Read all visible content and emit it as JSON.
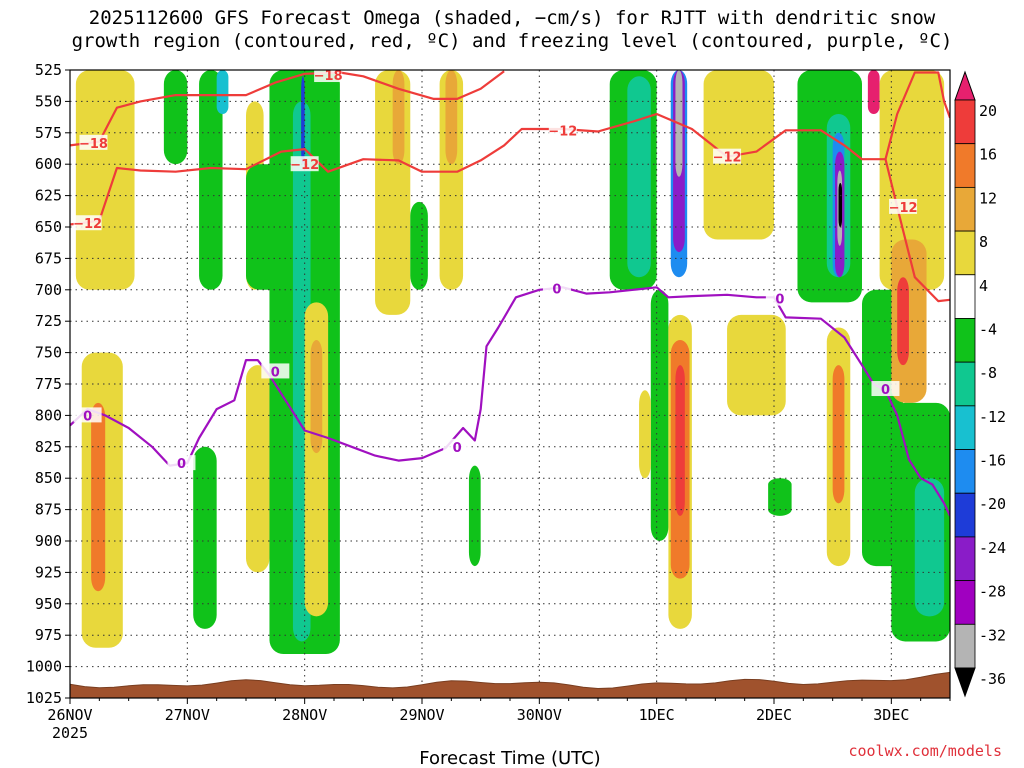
{
  "chart_data": {
    "type": "heatmap",
    "title_line1": "2025112600 GFS Forecast Omega (shaded, −cm/s) for RJTT with dendritic snow",
    "title_line2": "growth region (contoured, red, ºC) and freezing level (contoured, purple, ºC)",
    "xlabel": "Forecast Time (UTC)",
    "credit": "coolwx.com/models",
    "y_axis": {
      "unit": "hPa",
      "ticks": [
        525,
        550,
        575,
        600,
        625,
        650,
        675,
        700,
        725,
        750,
        775,
        800,
        825,
        850,
        875,
        900,
        925,
        950,
        975,
        1000,
        1025
      ],
      "range": [
        525,
        1025
      ],
      "grid": true
    },
    "x_axis": {
      "range_days": [
        0,
        7.5
      ],
      "ticks": [
        {
          "day": 0,
          "label": "26NOV",
          "sublabel": "2025"
        },
        {
          "day": 1,
          "label": "27NOV",
          "sublabel": ""
        },
        {
          "day": 2,
          "label": "28NOV",
          "sublabel": ""
        },
        {
          "day": 3,
          "label": "29NOV",
          "sublabel": ""
        },
        {
          "day": 4,
          "label": "30NOV",
          "sublabel": ""
        },
        {
          "day": 5,
          "label": "1DEC",
          "sublabel": ""
        },
        {
          "day": 6,
          "label": "2DEC",
          "sublabel": ""
        },
        {
          "day": 7,
          "label": "3DEC",
          "sublabel": ""
        }
      ],
      "grid": true
    },
    "colorbar": {
      "labels": [
        "20",
        "16",
        "12",
        "8",
        "4",
        "-4",
        "-8",
        "-12",
        "-16",
        "-20",
        "-24",
        "-28",
        "-32",
        "-36"
      ],
      "colors": [
        "#e6206e",
        "#ee3c3a",
        "#f07a2a",
        "#e8a838",
        "#e8d83c",
        "#ffffff",
        "#10c21a",
        "#10c890",
        "#18c0d0",
        "#1e8cf0",
        "#1e3cd8",
        "#8a1cc8",
        "#a000c0",
        "#b4b4b4",
        "#000000"
      ]
    },
    "dendritic_contours": [
      {
        "value": -18,
        "label": "−18",
        "color": "#ee3c3a",
        "points": [
          [
            0,
            585
          ],
          [
            0.25,
            582
          ],
          [
            0.4,
            555
          ],
          [
            0.6,
            550
          ],
          [
            0.9,
            545
          ],
          [
            1.2,
            545
          ],
          [
            1.5,
            545
          ],
          [
            1.75,
            535
          ],
          [
            2.0,
            528
          ],
          [
            2.3,
            527
          ],
          [
            2.5,
            530
          ],
          [
            2.8,
            540
          ],
          [
            3.1,
            548
          ],
          [
            3.3,
            548
          ],
          [
            3.5,
            540
          ],
          [
            3.7,
            526
          ]
        ]
      },
      {
        "value": -12,
        "label": "−12",
        "color": "#ee3c3a",
        "points": [
          [
            0,
            648
          ],
          [
            0.25,
            645
          ],
          [
            0.4,
            603
          ],
          [
            0.6,
            605
          ],
          [
            0.9,
            606
          ],
          [
            1.2,
            603
          ],
          [
            1.5,
            604
          ],
          [
            1.8,
            590
          ],
          [
            2.0,
            588
          ],
          [
            2.2,
            606
          ],
          [
            2.5,
            596
          ],
          [
            2.8,
            597
          ],
          [
            3.0,
            606
          ],
          [
            3.3,
            606
          ],
          [
            3.5,
            597
          ],
          [
            3.7,
            585
          ],
          [
            3.85,
            572
          ],
          [
            4.2,
            572
          ],
          [
            4.5,
            574
          ],
          [
            4.8,
            566
          ],
          [
            5.0,
            560
          ],
          [
            5.3,
            572
          ],
          [
            5.6,
            594
          ],
          [
            5.85,
            590
          ],
          [
            6.1,
            573
          ],
          [
            6.4,
            573
          ],
          [
            6.6,
            585
          ],
          [
            6.75,
            596
          ],
          [
            6.95,
            596
          ],
          [
            7.05,
            634
          ],
          [
            7.2,
            690
          ],
          [
            7.4,
            709
          ],
          [
            7.5,
            708
          ]
        ]
      },
      {
        "value": -12,
        "label": "",
        "color": "#ee3c3a",
        "points": [
          [
            6.95,
            596
          ],
          [
            7.05,
            560
          ],
          [
            7.2,
            527
          ],
          [
            7.4,
            527
          ],
          [
            7.45,
            550
          ],
          [
            7.5,
            563
          ]
        ]
      }
    ],
    "freezing_level": {
      "value": 0,
      "label": "0",
      "color": "#a010c0",
      "points": [
        [
          0,
          808
        ],
        [
          0.15,
          795
        ],
        [
          0.3,
          800
        ],
        [
          0.5,
          810
        ],
        [
          0.7,
          825
        ],
        [
          0.85,
          840
        ],
        [
          1.0,
          838
        ],
        [
          1.1,
          818
        ],
        [
          1.25,
          795
        ],
        [
          1.4,
          788
        ],
        [
          1.5,
          756
        ],
        [
          1.6,
          756
        ],
        [
          1.7,
          768
        ],
        [
          1.85,
          790
        ],
        [
          2.0,
          812
        ],
        [
          2.2,
          818
        ],
        [
          2.4,
          825
        ],
        [
          2.6,
          832
        ],
        [
          2.8,
          836
        ],
        [
          3.0,
          834
        ],
        [
          3.2,
          826
        ],
        [
          3.35,
          810
        ],
        [
          3.45,
          820
        ],
        [
          3.5,
          795
        ],
        [
          3.55,
          745
        ],
        [
          3.65,
          730
        ],
        [
          3.8,
          706
        ],
        [
          4.0,
          700
        ],
        [
          4.2,
          698
        ],
        [
          4.4,
          703
        ],
        [
          4.6,
          702
        ],
        [
          4.8,
          700
        ],
        [
          5.0,
          698
        ],
        [
          5.1,
          706
        ],
        [
          5.3,
          705
        ],
        [
          5.6,
          704
        ],
        [
          5.85,
          706
        ],
        [
          6.0,
          706
        ],
        [
          6.1,
          722
        ],
        [
          6.4,
          723
        ],
        [
          6.6,
          738
        ],
        [
          6.75,
          760
        ],
        [
          6.85,
          775
        ],
        [
          6.95,
          780
        ],
        [
          7.05,
          800
        ],
        [
          7.15,
          835
        ],
        [
          7.25,
          850
        ],
        [
          7.35,
          855
        ],
        [
          7.45,
          870
        ],
        [
          7.5,
          880
        ]
      ]
    },
    "omega_regions": [
      {
        "color": "#e8d83c",
        "days": [
          0.05,
          0.55
        ],
        "p": [
          525,
          700
        ]
      },
      {
        "color": "#e8d83c",
        "days": [
          0.1,
          0.45
        ],
        "p": [
          750,
          985
        ]
      },
      {
        "color": "#f07a2a",
        "days": [
          0.18,
          0.3
        ],
        "p": [
          790,
          940
        ]
      },
      {
        "color": "#10c21a",
        "days": [
          0.8,
          1.0
        ],
        "p": [
          525,
          600
        ]
      },
      {
        "color": "#10c21a",
        "days": [
          1.1,
          1.3
        ],
        "p": [
          525,
          700
        ]
      },
      {
        "color": "#18c0d0",
        "days": [
          1.25,
          1.35
        ],
        "p": [
          525,
          560
        ]
      },
      {
        "color": "#e8d83c",
        "days": [
          1.5,
          1.65
        ],
        "p": [
          550,
          700
        ]
      },
      {
        "color": "#10c21a",
        "days": [
          1.5,
          1.9
        ],
        "p": [
          600,
          700
        ]
      },
      {
        "color": "#10c21a",
        "days": [
          1.05,
          1.25
        ],
        "p": [
          825,
          970
        ]
      },
      {
        "color": "#e8d83c",
        "days": [
          1.5,
          1.7
        ],
        "p": [
          760,
          925
        ]
      },
      {
        "color": "#10c21a",
        "days": [
          1.7,
          2.3
        ],
        "p": [
          525,
          990
        ]
      },
      {
        "color": "#10c890",
        "days": [
          1.9,
          2.05
        ],
        "p": [
          550,
          980
        ]
      },
      {
        "color": "#1e3cd8",
        "days": [
          1.97,
          2.0
        ],
        "p": [
          530,
          600
        ]
      },
      {
        "color": "#e8d83c",
        "days": [
          2.0,
          2.2
        ],
        "p": [
          710,
          960
        ]
      },
      {
        "color": "#e8a838",
        "days": [
          2.05,
          2.15
        ],
        "p": [
          740,
          830
        ]
      },
      {
        "color": "#e8d83c",
        "days": [
          2.6,
          2.9
        ],
        "p": [
          525,
          720
        ]
      },
      {
        "color": "#e8a838",
        "days": [
          2.75,
          2.85
        ],
        "p": [
          525,
          600
        ]
      },
      {
        "color": "#10c21a",
        "days": [
          2.9,
          3.05
        ],
        "p": [
          630,
          700
        ]
      },
      {
        "color": "#e8d83c",
        "days": [
          3.15,
          3.35
        ],
        "p": [
          525,
          700
        ]
      },
      {
        "color": "#e8a838",
        "days": [
          3.2,
          3.3
        ],
        "p": [
          525,
          600
        ]
      },
      {
        "color": "#10c21a",
        "days": [
          3.4,
          3.5
        ],
        "p": [
          840,
          920
        ]
      },
      {
        "color": "#10c21a",
        "days": [
          4.6,
          5.0
        ],
        "p": [
          525,
          700
        ]
      },
      {
        "color": "#10c890",
        "days": [
          4.75,
          4.95
        ],
        "p": [
          530,
          690
        ]
      },
      {
        "color": "#10c21a",
        "days": [
          4.95,
          5.1
        ],
        "p": [
          700,
          900
        ]
      },
      {
        "color": "#e8d83c",
        "days": [
          4.85,
          4.95
        ],
        "p": [
          780,
          850
        ]
      },
      {
        "color": "#e8d83c",
        "days": [
          5.1,
          5.3
        ],
        "p": [
          720,
          970
        ]
      },
      {
        "color": "#f07a2a",
        "days": [
          5.12,
          5.28
        ],
        "p": [
          740,
          930
        ]
      },
      {
        "color": "#ee3c3a",
        "days": [
          5.16,
          5.24
        ],
        "p": [
          760,
          880
        ]
      },
      {
        "color": "#1e8cf0",
        "days": [
          5.12,
          5.26
        ],
        "p": [
          525,
          690
        ]
      },
      {
        "color": "#8a1cc8",
        "days": [
          5.14,
          5.24
        ],
        "p": [
          525,
          670
        ]
      },
      {
        "color": "#b4b4b4",
        "days": [
          5.16,
          5.22
        ],
        "p": [
          525,
          610
        ]
      },
      {
        "color": "#e8d83c",
        "days": [
          5.4,
          6.0
        ],
        "p": [
          525,
          660
        ]
      },
      {
        "color": "#e8d83c",
        "days": [
          5.6,
          6.1
        ],
        "p": [
          720,
          800
        ]
      },
      {
        "color": "#10c21a",
        "days": [
          5.95,
          6.15
        ],
        "p": [
          850,
          880
        ]
      },
      {
        "color": "#10c21a",
        "days": [
          6.2,
          6.75
        ],
        "p": [
          525,
          710
        ]
      },
      {
        "color": "#10c890",
        "days": [
          6.45,
          6.65
        ],
        "p": [
          560,
          690
        ]
      },
      {
        "color": "#1e8cf0",
        "days": [
          6.5,
          6.6
        ],
        "p": [
          575,
          690
        ]
      },
      {
        "color": "#8a1cc8",
        "days": [
          6.52,
          6.6
        ],
        "p": [
          590,
          690
        ]
      },
      {
        "color": "#b4b4b4",
        "days": [
          6.54,
          6.58
        ],
        "p": [
          605,
          665
        ]
      },
      {
        "color": "#000000",
        "days": [
          6.55,
          6.58
        ],
        "p": [
          615,
          650
        ]
      },
      {
        "color": "#e8d83c",
        "days": [
          6.45,
          6.65
        ],
        "p": [
          730,
          920
        ]
      },
      {
        "color": "#f07a2a",
        "days": [
          6.5,
          6.6
        ],
        "p": [
          760,
          870
        ]
      },
      {
        "color": "#10c21a",
        "days": [
          6.75,
          7.1
        ],
        "p": [
          700,
          920
        ]
      },
      {
        "color": "#e6206e",
        "days": [
          6.8,
          6.9
        ],
        "p": [
          525,
          560
        ]
      },
      {
        "color": "#e8d83c",
        "days": [
          6.9,
          7.45
        ],
        "p": [
          525,
          700
        ]
      },
      {
        "color": "#e8a838",
        "days": [
          7.0,
          7.3
        ],
        "p": [
          660,
          790
        ]
      },
      {
        "color": "#ee3c3a",
        "days": [
          7.05,
          7.15
        ],
        "p": [
          690,
          760
        ]
      },
      {
        "color": "#10c21a",
        "days": [
          7.0,
          7.5
        ],
        "p": [
          790,
          980
        ]
      },
      {
        "color": "#10c890",
        "days": [
          7.2,
          7.45
        ],
        "p": [
          850,
          960
        ]
      }
    ]
  }
}
